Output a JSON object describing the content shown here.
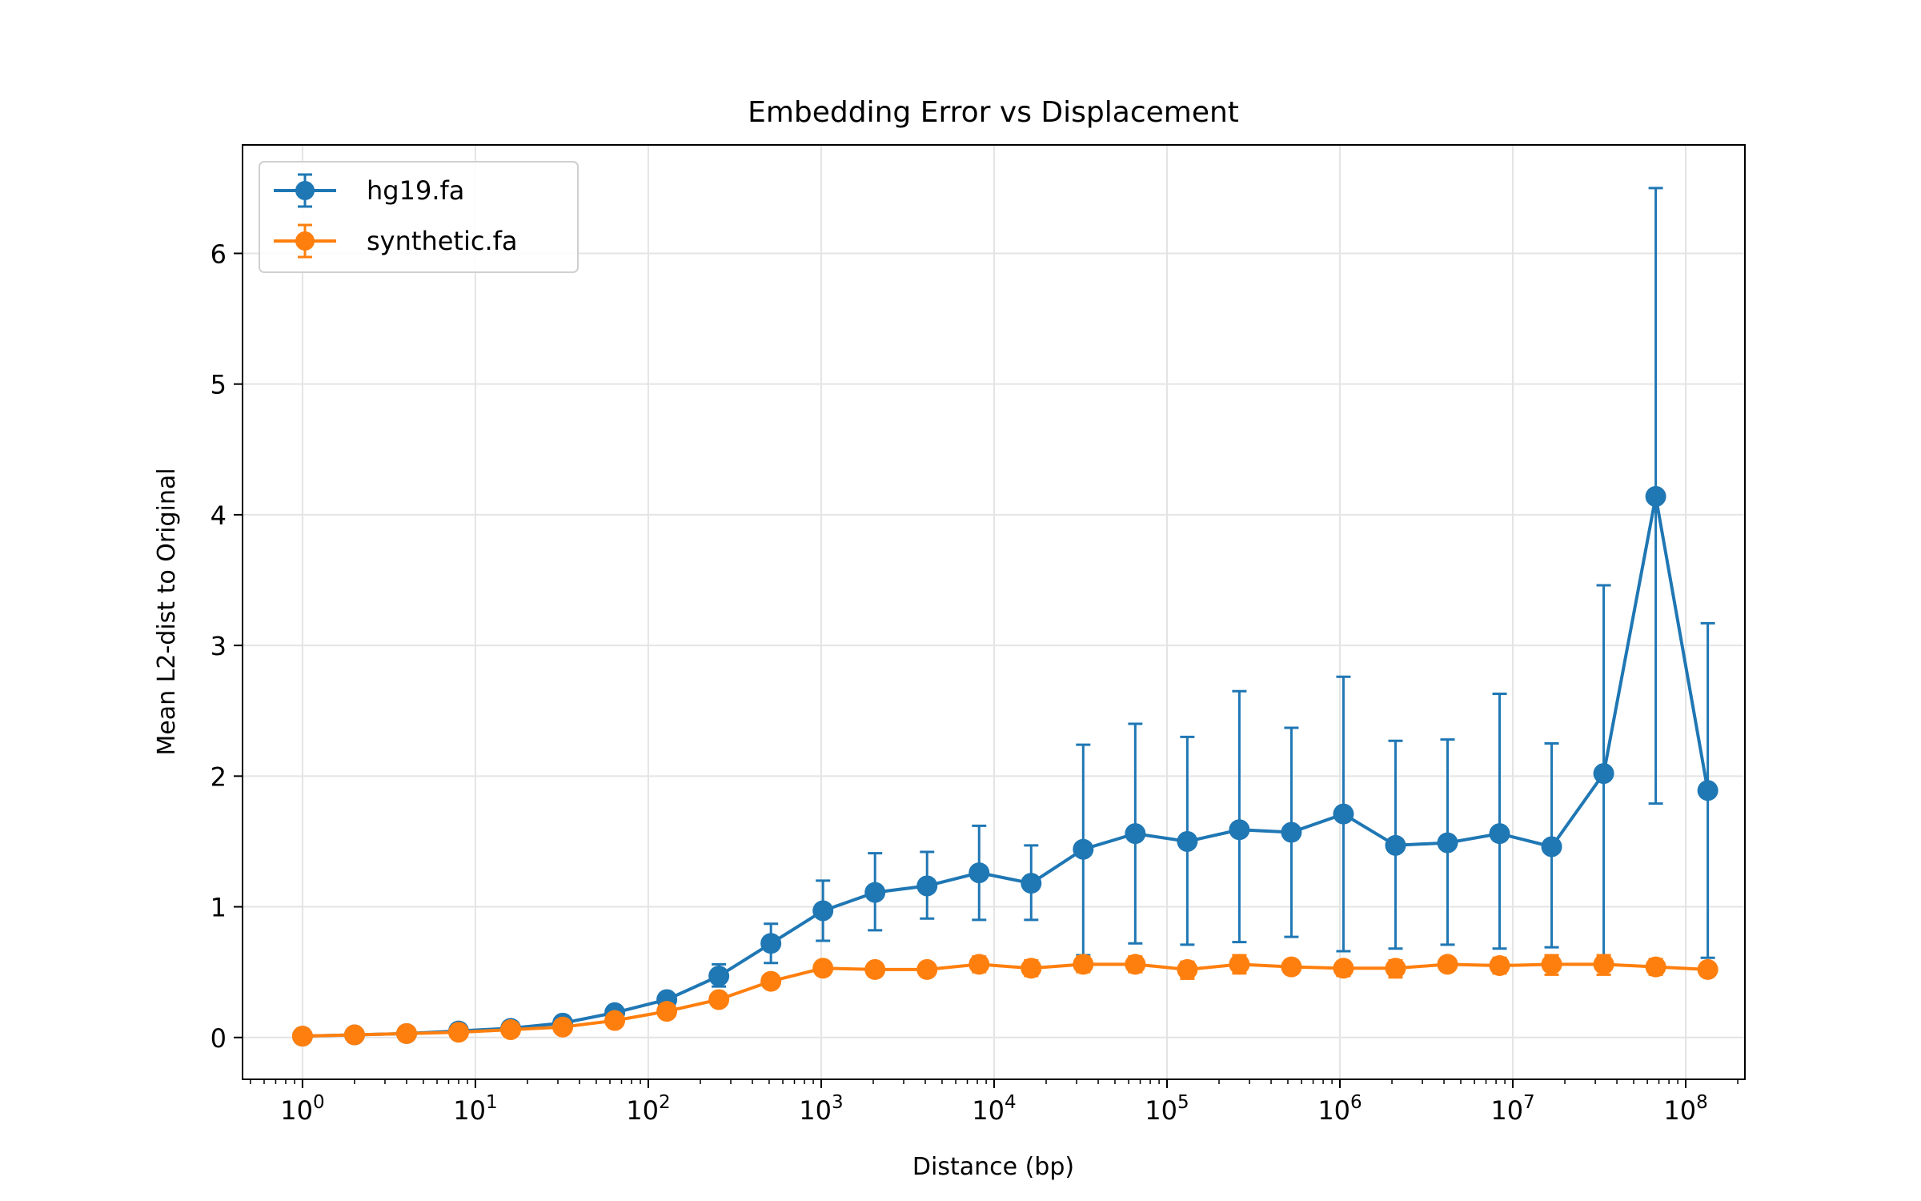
{
  "chart_data": {
    "type": "line",
    "title": "Embedding Error vs Displacement",
    "xlabel": "Distance (bp)",
    "ylabel": "Mean L2-dist to Original",
    "xscale": "log",
    "xlim": [
      0.45,
      220000000
    ],
    "ylim": [
      -0.32,
      6.83
    ],
    "yticks": [
      0,
      1,
      2,
      3,
      4,
      5,
      6
    ],
    "xtick_exponents": [
      0,
      1,
      2,
      3,
      4,
      5,
      6,
      7,
      8
    ],
    "xtick_base": "10",
    "grid": true,
    "legend_position": "upper-left",
    "x": [
      1,
      2,
      4,
      8,
      16,
      32,
      64,
      128,
      256,
      512,
      1024,
      2048,
      4096,
      8192,
      16384,
      32768,
      65536,
      131072,
      262144,
      524288,
      1048576,
      2097152,
      4194304,
      8388608,
      16777216,
      33554432,
      67108864,
      134217728
    ],
    "series": [
      {
        "name": "hg19.fa",
        "color": "#1f77b4",
        "values": [
          0.01,
          0.02,
          0.03,
          0.05,
          0.07,
          0.11,
          0.19,
          0.29,
          0.47,
          0.72,
          0.97,
          1.11,
          1.16,
          1.26,
          1.18,
          1.44,
          1.56,
          1.5,
          1.59,
          1.57,
          1.71,
          1.47,
          1.49,
          1.56,
          1.46,
          2.02,
          4.14,
          1.89
        ],
        "err_low": [
          0.01,
          0.02,
          0.03,
          0.04,
          0.06,
          0.09,
          0.16,
          0.25,
          0.39,
          0.57,
          0.74,
          0.82,
          0.91,
          0.9,
          0.9,
          0.63,
          0.72,
          0.71,
          0.73,
          0.77,
          0.66,
          0.68,
          0.71,
          0.68,
          0.69,
          0.58,
          1.79,
          0.61
        ],
        "err_high": [
          0.01,
          0.02,
          0.03,
          0.05,
          0.08,
          0.13,
          0.22,
          0.32,
          0.56,
          0.87,
          1.2,
          1.41,
          1.42,
          1.62,
          1.47,
          2.24,
          2.4,
          2.3,
          2.65,
          2.37,
          2.76,
          2.27,
          2.28,
          2.63,
          2.25,
          3.46,
          6.5,
          3.17
        ]
      },
      {
        "name": "synthetic.fa",
        "color": "#ff7f0e",
        "values": [
          0.01,
          0.02,
          0.03,
          0.04,
          0.06,
          0.08,
          0.13,
          0.2,
          0.29,
          0.43,
          0.53,
          0.52,
          0.52,
          0.56,
          0.53,
          0.56,
          0.56,
          0.52,
          0.56,
          0.54,
          0.53,
          0.53,
          0.56,
          0.55,
          0.56,
          0.56,
          0.54,
          0.52
        ],
        "err_low": [
          0.01,
          0.02,
          0.03,
          0.04,
          0.06,
          0.08,
          0.13,
          0.19,
          0.27,
          0.39,
          0.48,
          0.47,
          0.47,
          0.5,
          0.47,
          0.5,
          0.5,
          0.45,
          0.49,
          0.49,
          0.47,
          0.46,
          0.51,
          0.49,
          0.48,
          0.48,
          0.48,
          0.47
        ],
        "err_high": [
          0.01,
          0.02,
          0.03,
          0.04,
          0.06,
          0.08,
          0.13,
          0.2,
          0.3,
          0.46,
          0.58,
          0.57,
          0.57,
          0.62,
          0.59,
          0.62,
          0.62,
          0.58,
          0.63,
          0.59,
          0.58,
          0.59,
          0.61,
          0.61,
          0.63,
          0.63,
          0.6,
          0.57
        ]
      }
    ]
  }
}
